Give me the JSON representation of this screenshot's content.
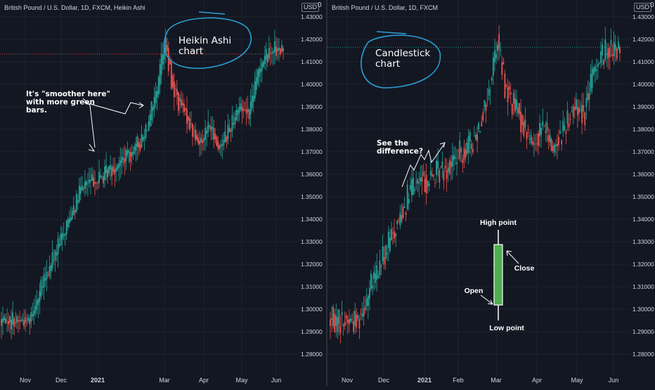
{
  "chart_data": [
    {
      "type": "candlestick",
      "title": "British Pound / U.S. Dollar, 1D, FXCM, Heikin Ashi",
      "axis_badge": "USD",
      "axis_zero": "0",
      "yticks": [
        "1.43000",
        "1.42000",
        "1.41000",
        "1.40000",
        "1.39000",
        "1.38000",
        "1.37000",
        "1.36000",
        "1.35000",
        "1.34000",
        "1.33000",
        "1.32000",
        "1.31000",
        "1.30000",
        "1.29000",
        "1.28000"
      ],
      "xticks": [
        "Nov",
        "Dec",
        "2021",
        "Mar",
        "Apr",
        "May",
        "Jun"
      ],
      "ylim": [
        1.275,
        1.435
      ],
      "price_line": 1.4135,
      "x_start": "2020-10-12",
      "x_end": "2021-06-07",
      "trend": [
        [
          0,
          1.295
        ],
        [
          20,
          1.295
        ],
        [
          42,
          1.33
        ],
        [
          58,
          1.355
        ],
        [
          70,
          1.358
        ],
        [
          84,
          1.365
        ],
        [
          100,
          1.375
        ],
        [
          110,
          1.395
        ],
        [
          116,
          1.42
        ],
        [
          122,
          1.398
        ],
        [
          132,
          1.385
        ],
        [
          140,
          1.374
        ],
        [
          148,
          1.382
        ],
        [
          154,
          1.372
        ],
        [
          160,
          1.378
        ],
        [
          168,
          1.39
        ],
        [
          176,
          1.388
        ],
        [
          184,
          1.41
        ],
        [
          192,
          1.416
        ],
        [
          200,
          1.414
        ]
      ],
      "annotations": [
        {
          "text": "Heikin Ashi\nchart"
        },
        {
          "text": "It's \"smoother here\"\nwith more green\nbars."
        }
      ]
    },
    {
      "type": "candlestick",
      "title": "British Pound / U.S. Dollar, 1D, FXCM",
      "axis_badge": "USD",
      "axis_zero": "0",
      "yticks": [
        "1.43000",
        "1.42000",
        "1.41000",
        "1.40000",
        "1.39000",
        "1.38000",
        "1.37000",
        "1.36000",
        "1.35000",
        "1.34000",
        "1.33000",
        "1.32000",
        "1.31000",
        "1.30000",
        "1.29000",
        "1.28000"
      ],
      "xticks": [
        "Nov",
        "Dec",
        "2021",
        "Feb",
        "Mar",
        "Apr",
        "May",
        "Jun"
      ],
      "ylim": [
        1.275,
        1.435
      ],
      "price_line": 1.4165,
      "x_start": "2020-10-12",
      "x_end": "2021-06-07",
      "trend": [
        [
          0,
          1.295
        ],
        [
          20,
          1.295
        ],
        [
          42,
          1.33
        ],
        [
          58,
          1.355
        ],
        [
          70,
          1.358
        ],
        [
          84,
          1.365
        ],
        [
          100,
          1.375
        ],
        [
          110,
          1.395
        ],
        [
          116,
          1.42
        ],
        [
          122,
          1.398
        ],
        [
          132,
          1.385
        ],
        [
          140,
          1.374
        ],
        [
          148,
          1.382
        ],
        [
          154,
          1.372
        ],
        [
          160,
          1.378
        ],
        [
          168,
          1.39
        ],
        [
          176,
          1.388
        ],
        [
          184,
          1.41
        ],
        [
          192,
          1.416
        ],
        [
          200,
          1.414
        ]
      ],
      "annotations": [
        {
          "text": "Candlestick\nchart"
        },
        {
          "text": "See the\ndifference?"
        },
        {
          "text": "High point"
        },
        {
          "text": "Close"
        },
        {
          "text": "Open"
        },
        {
          "text": "Low point"
        }
      ]
    }
  ],
  "colors": {
    "up": "#26a69a",
    "down": "#ef5350",
    "bg": "#131722",
    "grid": "#1f2330",
    "text": "#d1d4dc",
    "circle": "#2a9fd6",
    "demo_candle": "#4caf50"
  }
}
